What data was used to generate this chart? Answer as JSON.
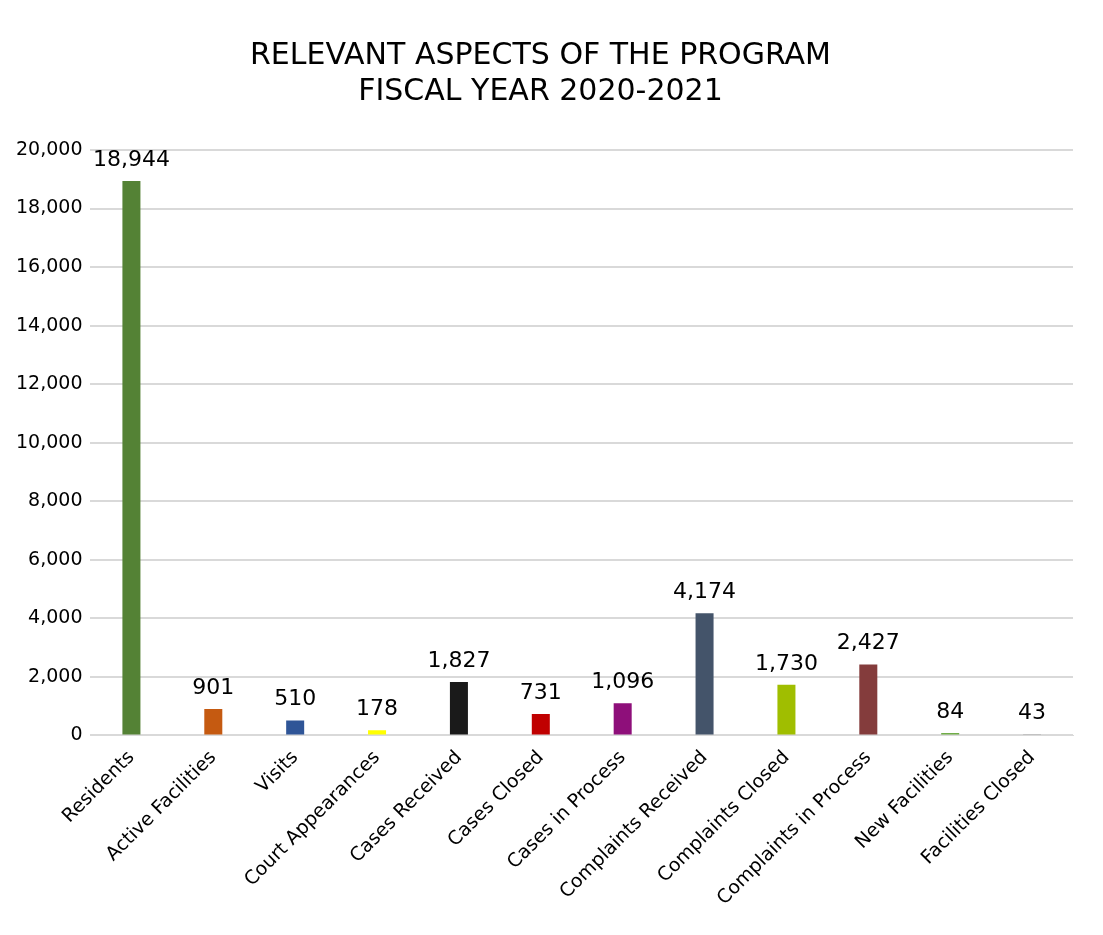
{
  "chart_data": {
    "type": "bar",
    "title": "RELEVANT ASPECTS OF THE PROGRAM\nFISCAL YEAR 2020-2021",
    "categories": [
      "Residents",
      "Active Facilities",
      "Visits",
      "Court Appearances",
      "Cases Received",
      "Cases Closed",
      "Cases in Process",
      "Complaints Received",
      "Complaints Closed",
      "Complaints in Process",
      "New Facilities",
      "Facilities Closed"
    ],
    "values": [
      18944,
      901,
      510,
      178,
      1827,
      731,
      1096,
      4174,
      1730,
      2427,
      84,
      43
    ],
    "value_labels": [
      "18,944",
      "901",
      "510",
      "178",
      "1,827",
      "731",
      "1,096",
      "4,174",
      "1,730",
      "2,427",
      "84",
      "43"
    ],
    "colors": [
      "#548235",
      "#c55a11",
      "#2f5597",
      "#ffff00",
      "#1a1a1a",
      "#c00000",
      "#8e0f7a",
      "#44546a",
      "#a0be00",
      "#843c3c",
      "#70ad47",
      "#7f7f7f"
    ],
    "ylim": [
      0,
      20000
    ],
    "yticks": [
      0,
      {
        "value": 2000,
        "label": "2,000"
      },
      {
        "value": 4000,
        "label": "4,000"
      },
      {
        "value": 6000,
        "label": "6,000"
      },
      {
        "value": 8000,
        "label": "8,000"
      },
      {
        "value": 10000,
        "label": "10,000"
      },
      {
        "value": 12000,
        "label": "12,000"
      },
      {
        "value": 14000,
        "label": "14,000"
      },
      {
        "value": 16000,
        "label": "16,000"
      },
      {
        "value": 18000,
        "label": "18,000"
      },
      {
        "value": 20000,
        "label": "20,000"
      }
    ],
    "grid": "y",
    "legend": false
  }
}
